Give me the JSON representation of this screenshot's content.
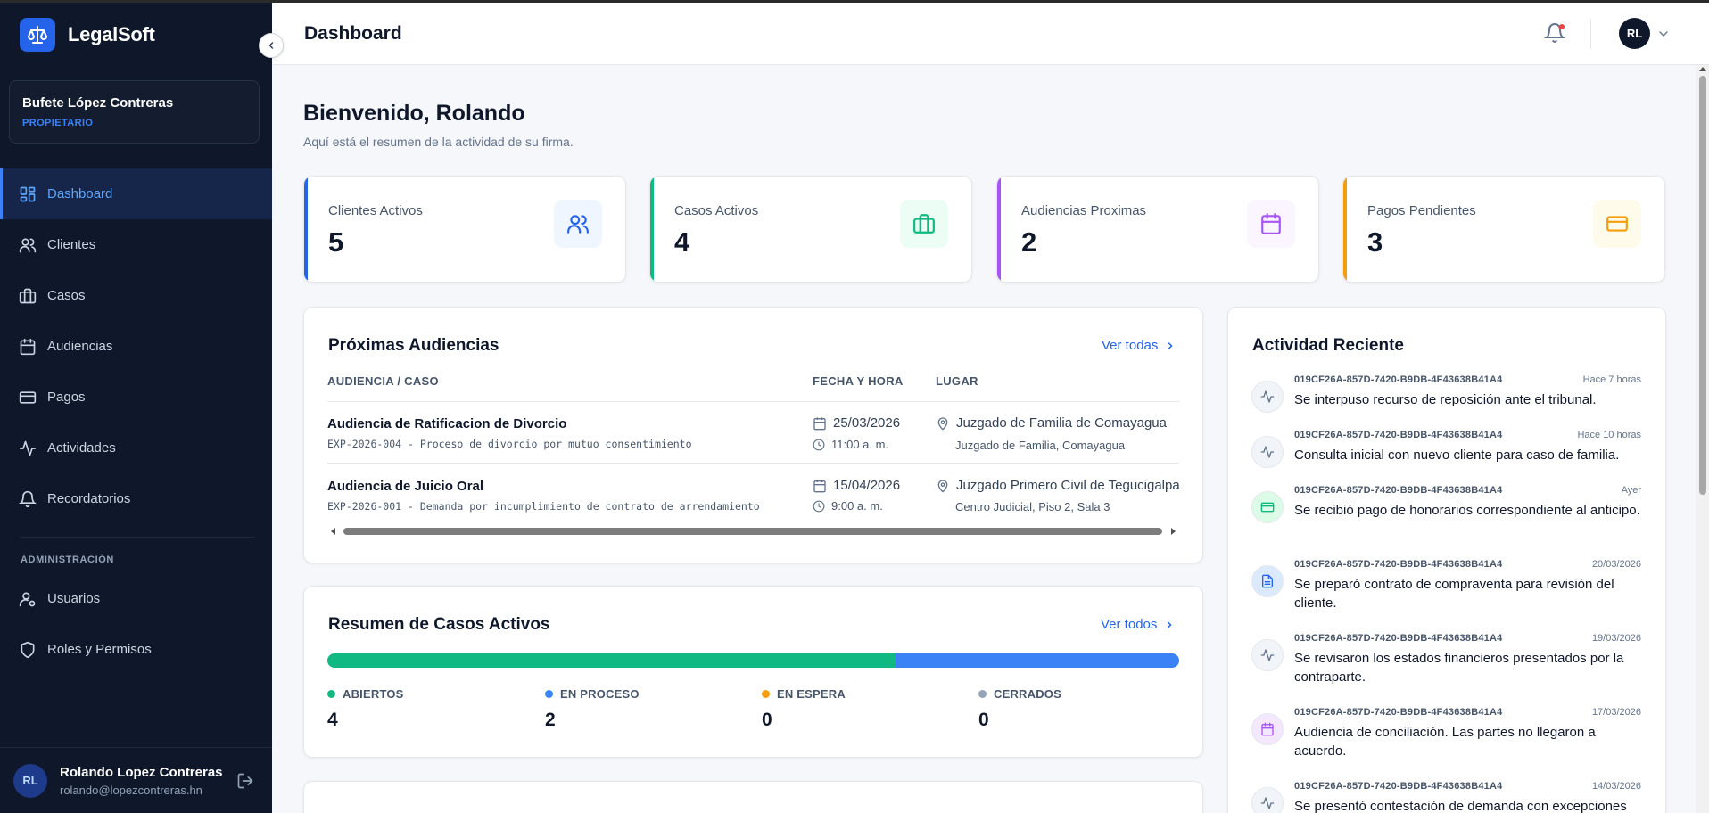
{
  "app": {
    "name": "LegalSoft"
  },
  "firm": {
    "name": "Bufete López Contreras",
    "role": "PROPIETARIO"
  },
  "nav": {
    "items": [
      {
        "label": "Dashboard",
        "icon": "dashboard-icon",
        "active": true
      },
      {
        "label": "Clientes",
        "icon": "users-icon"
      },
      {
        "label": "Casos",
        "icon": "briefcase-icon"
      },
      {
        "label": "Audiencias",
        "icon": "calendar-icon"
      },
      {
        "label": "Pagos",
        "icon": "credit-card-icon"
      },
      {
        "label": "Actividades",
        "icon": "activity-icon"
      },
      {
        "label": "Recordatorios",
        "icon": "bell-icon"
      }
    ],
    "admin_section": "ADMINISTRACIÓN",
    "admin_items": [
      {
        "label": "Usuarios",
        "icon": "user-cog-icon"
      },
      {
        "label": "Roles y Permisos",
        "icon": "shield-icon"
      }
    ]
  },
  "user": {
    "name": "Rolando Lopez Contreras",
    "email": "rolando@lopezcontreras.hn",
    "initials": "RL"
  },
  "header": {
    "title": "Dashboard",
    "avatar_initials": "RL"
  },
  "welcome": {
    "title": "Bienvenido, Rolando",
    "subtitle": "Aquí está el resumen de la actividad de su firma."
  },
  "stats": [
    {
      "label": "Clientes Activos",
      "value": "5",
      "accent": "#2563eb",
      "icon": "users-icon"
    },
    {
      "label": "Casos Activos",
      "value": "4",
      "accent": "#10b981",
      "icon": "briefcase-icon"
    },
    {
      "label": "Audiencias Proximas",
      "value": "2",
      "accent": "#a855f7",
      "icon": "calendar-icon"
    },
    {
      "label": "Pagos Pendientes",
      "value": "3",
      "accent": "#f59e0b",
      "icon": "credit-card-icon"
    }
  ],
  "hearings": {
    "title": "Próximas Audiencias",
    "link": "Ver todas",
    "columns": [
      "AUDIENCIA / CASO",
      "FECHA Y HORA",
      "LUGAR"
    ],
    "rows": [
      {
        "title": "Audiencia de Ratificacion de Divorcio",
        "case": "EXP-2026-004 - Proceso de divorcio por mutuo consentimiento",
        "date": "25/03/2026",
        "time": "11:00 a. m.",
        "place": "Juzgado de Familia de Comayagua",
        "place_detail": "Juzgado de Familia, Comayagua"
      },
      {
        "title": "Audiencia de Juicio Oral",
        "case": "EXP-2026-001 - Demanda por incumplimiento de contrato de arrendamiento",
        "date": "15/04/2026",
        "time": "9:00 a. m.",
        "place": "Juzgado Primero Civil de Tegucigalpa",
        "place_detail": "Centro Judicial, Piso 2, Sala 3"
      }
    ]
  },
  "cases_summary": {
    "title": "Resumen de Casos Activos",
    "link": "Ver todos",
    "segments": [
      {
        "label": "ABIERTOS",
        "value": "4",
        "count": 4,
        "color": "#10b981"
      },
      {
        "label": "EN PROCESO",
        "value": "2",
        "count": 2,
        "color": "#3b82f6"
      },
      {
        "label": "EN ESPERA",
        "value": "0",
        "count": 0,
        "color": "#f59e0b"
      },
      {
        "label": "CERRADOS",
        "value": "0",
        "count": 0,
        "color": "#94a3b8"
      }
    ]
  },
  "activity": {
    "title": "Actividad Reciente",
    "items": [
      {
        "id": "019CF26A-857D-7420-B9DB-4F43638B41A4",
        "time": "Hace 7 horas",
        "text": "Se interpuso recurso de reposición ante el tribunal.",
        "icon": "activity-icon",
        "color": "#64748b",
        "bg": "#f1f5f9"
      },
      {
        "id": "019CF26A-857D-7420-B9DB-4F43638B41A4",
        "time": "Hace 10 horas",
        "text": "Consulta inicial con nuevo cliente para caso de familia.",
        "icon": "activity-icon",
        "color": "#64748b",
        "bg": "#f1f5f9"
      },
      {
        "id": "019CF26A-857D-7420-B9DB-4F43638B41A4",
        "time": "Ayer",
        "text": "Se recibió pago de honorarios correspondiente al anticipo.",
        "icon": "credit-card-icon",
        "color": "#10b981",
        "bg": "#dcfce7"
      },
      {
        "id": "019CF26A-857D-7420-B9DB-4F43638B41A4",
        "time": "20/03/2026",
        "text": "Se preparó contrato de compraventa para revisión del cliente.",
        "icon": "document-icon",
        "color": "#2563eb",
        "bg": "#dbeafe"
      },
      {
        "id": "019CF26A-857D-7420-B9DB-4F43638B41A4",
        "time": "19/03/2026",
        "text": "Se revisaron los estados financieros presentados por la contraparte.",
        "icon": "activity-icon",
        "color": "#64748b",
        "bg": "#f1f5f9"
      },
      {
        "id": "019CF26A-857D-7420-B9DB-4F43638B41A4",
        "time": "17/03/2026",
        "text": "Audiencia de conciliación. Las partes no llegaron a acuerdo.",
        "icon": "calendar-icon",
        "color": "#a855f7",
        "bg": "#f3e8ff"
      },
      {
        "id": "019CF26A-857D-7420-B9DB-4F43638B41A4",
        "time": "14/03/2026",
        "text": "Se presentó contestación de demanda con excepciones",
        "icon": "activity-icon",
        "color": "#64748b",
        "bg": "#f1f5f9"
      }
    ]
  }
}
